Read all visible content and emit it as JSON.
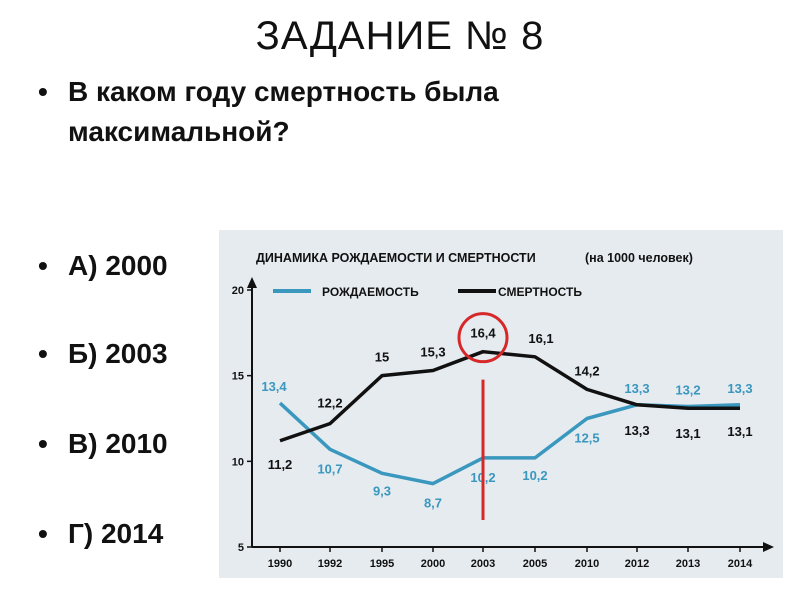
{
  "slide": {
    "title": "ЗАДАНИЕ № 8",
    "question": "В каком году смертность была максимальной?",
    "options": [
      "А) 2000",
      "Б) 2003",
      "В) 2010",
      "Г) 2014"
    ]
  },
  "chart_data": {
    "type": "line",
    "title": "ДИНАМИКА РОЖДАЕМОСТИ И СМЕРТНОСТИ",
    "subtitle": "(на 1000 человек)",
    "categories": [
      "1990",
      "1992",
      "1995",
      "2000",
      "2003",
      "2005",
      "2010",
      "2012",
      "2013",
      "2014"
    ],
    "series": [
      {
        "name": "РОЖДАЕМОСТЬ",
        "color": "#3a97be",
        "values": [
          13.4,
          10.7,
          9.3,
          8.7,
          10.2,
          10.2,
          12.5,
          13.3,
          13.2,
          13.3
        ],
        "labels": [
          "13,4",
          "10,7",
          "9,3",
          "8,7",
          "10,2",
          "10,2",
          "12,5",
          "13,3",
          "13,2",
          "13,3"
        ]
      },
      {
        "name": "СМЕРТНОСТЬ",
        "color": "#111111",
        "values": [
          11.2,
          12.2,
          15,
          15.3,
          16.4,
          16.1,
          14.2,
          13.3,
          13.1,
          13.1
        ],
        "labels": [
          "11,2",
          "12,2",
          "15",
          "15,3",
          "16,4",
          "16,1",
          "14,2",
          "13,3",
          "13,1",
          "13,1"
        ]
      }
    ],
    "ylim": [
      5,
      20
    ],
    "yticks": [
      "5",
      "10",
      "15",
      "20"
    ],
    "legend": "top",
    "highlight": {
      "category": "2003",
      "series": "СМЕРТНОСТЬ",
      "color": "#d62828"
    }
  }
}
